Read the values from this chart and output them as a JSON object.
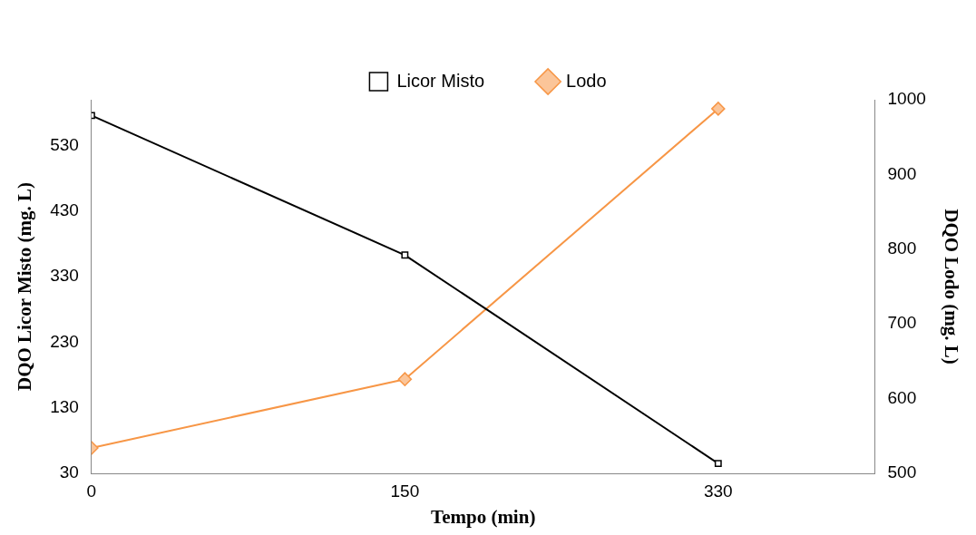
{
  "chart_data": {
    "type": "line",
    "xlabel": "Tempo (min)",
    "ylabel": "DQO Licor Misto (mg. L)",
    "y2label": "DQO Lodo (mg. L)",
    "categories": [
      "0",
      "150",
      "330"
    ],
    "series": [
      {
        "name": "Licor Misto",
        "color": "#000000",
        "marker": "square",
        "values": [
          576,
          363,
          45
        ]
      },
      {
        "name": "Lodo",
        "color": "#f79646",
        "marker": "diamond",
        "axis": "y2",
        "values": [
          534,
          626,
          988
        ]
      }
    ],
    "ylim": [
      30,
      600
    ],
    "yticks": [
      30,
      130,
      230,
      330,
      430,
      530
    ],
    "y2lim": [
      500,
      1000
    ],
    "y2ticks": [
      500,
      600,
      700,
      800,
      900,
      1000
    ],
    "grid": false,
    "legend": "top",
    "line_style": "solid"
  }
}
